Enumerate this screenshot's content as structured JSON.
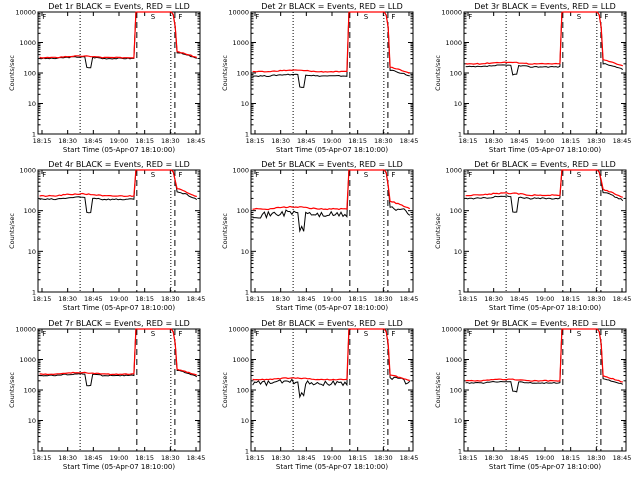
{
  "chart_data": {
    "type": "line",
    "x_ticks": [
      "18:15",
      "18:30",
      "18:45",
      "19:00",
      "18:15",
      "18:30",
      "18:45"
    ],
    "xlabel": "Start Time (05-Apr-07 18:10:00)",
    "ylabel": "Counts/sec",
    "y_scale": "log",
    "series_colors": {
      "events": "#000000",
      "lld": "#ff0000"
    },
    "legend_text": "BLACK = Events, RED = LLD",
    "panels": [
      {
        "title": "Det 1r  BLACK = Events, RED = LLD",
        "ylim": [
          1,
          10000
        ],
        "y_ticks": [
          "1",
          "10",
          "100",
          "1000",
          "10000"
        ],
        "events": {
          "base": 300,
          "dip": 150,
          "peak": 12000,
          "after": 300
        },
        "lld": {
          "base": 320,
          "peak": 12000,
          "after": 320
        },
        "markers": [
          "F",
          "S",
          "F"
        ]
      },
      {
        "title": "Det 2r  BLACK = Events, RED = LLD",
        "ylim": [
          1,
          10000
        ],
        "y_ticks": [
          "1",
          "10",
          "100",
          "1000",
          "10000"
        ],
        "events": {
          "base": 80,
          "dip": 35,
          "peak": 12000,
          "after": 80
        },
        "lld": {
          "base": 110,
          "peak": 12000,
          "after": 100
        },
        "markers": [
          "F",
          "S",
          "F"
        ]
      },
      {
        "title": "Det 3r  BLACK = Events, RED = LLD",
        "ylim": [
          1,
          10000
        ],
        "y_ticks": [
          "1",
          "10",
          "100",
          "1000",
          "10000"
        ],
        "events": {
          "base": 160,
          "dip": 90,
          "peak": 12000,
          "after": 130
        },
        "lld": {
          "base": 200,
          "peak": 12000,
          "after": 170
        },
        "markers": [
          "F",
          "S",
          "F"
        ]
      },
      {
        "title": "Det 4r  BLACK = Events, RED = LLD",
        "ylim": [
          1,
          1000
        ],
        "y_ticks": [
          "1",
          "10",
          "100",
          "1000"
        ],
        "events": {
          "base": 190,
          "dip": 90,
          "peak": 1200,
          "after": 190
        },
        "lld": {
          "base": 230,
          "peak": 1200,
          "after": 220
        },
        "markers": [
          "F",
          "S",
          "F"
        ]
      },
      {
        "title": "Det 5r  BLACK = Events, RED = LLD",
        "ylim": [
          1,
          1000
        ],
        "y_ticks": [
          "1",
          "10",
          "100",
          "1000"
        ],
        "events": {
          "base": 80,
          "dip": 35,
          "peak": 1200,
          "after": 85
        },
        "lld": {
          "base": 110,
          "peak": 1200,
          "after": 110
        },
        "markers": [
          "F",
          "S",
          "F"
        ]
      },
      {
        "title": "Det 6r  BLACK = Events, RED = LLD",
        "ylim": [
          1,
          1000
        ],
        "y_ticks": [
          "1",
          "10",
          "100",
          "1000"
        ],
        "events": {
          "base": 200,
          "dip": 90,
          "peak": 1200,
          "after": 180
        },
        "lld": {
          "base": 240,
          "peak": 1200,
          "after": 210
        },
        "markers": [
          "F",
          "S",
          "F"
        ]
      },
      {
        "title": "Det 7r  BLACK = Events, RED = LLD",
        "ylim": [
          1,
          10000
        ],
        "y_ticks": [
          "1",
          "10",
          "100",
          "1000",
          "10000"
        ],
        "events": {
          "base": 300,
          "dip": 140,
          "peak": 12000,
          "after": 280
        },
        "lld": {
          "base": 330,
          "peak": 12000,
          "after": 300
        },
        "markers": [
          "F",
          "S",
          "F"
        ]
      },
      {
        "title": "Det 8r  BLACK = Events, RED = LLD",
        "ylim": [
          1,
          10000
        ],
        "y_ticks": [
          "1",
          "10",
          "100",
          "1000",
          "10000"
        ],
        "events": {
          "base": 170,
          "dip": 70,
          "peak": 12000,
          "after": 170
        },
        "lld": {
          "base": 220,
          "peak": 12000,
          "after": 200
        },
        "markers": [
          "F",
          "S",
          "F"
        ]
      },
      {
        "title": "Det 9r  BLACK = Events, RED = LLD",
        "ylim": [
          1,
          10000
        ],
        "y_ticks": [
          "1",
          "10",
          "100",
          "1000",
          "10000"
        ],
        "events": {
          "base": 170,
          "dip": 90,
          "peak": 12000,
          "after": 150
        },
        "lld": {
          "base": 200,
          "peak": 12000,
          "after": 180
        },
        "markers": [
          "F",
          "S",
          "F"
        ]
      }
    ]
  }
}
